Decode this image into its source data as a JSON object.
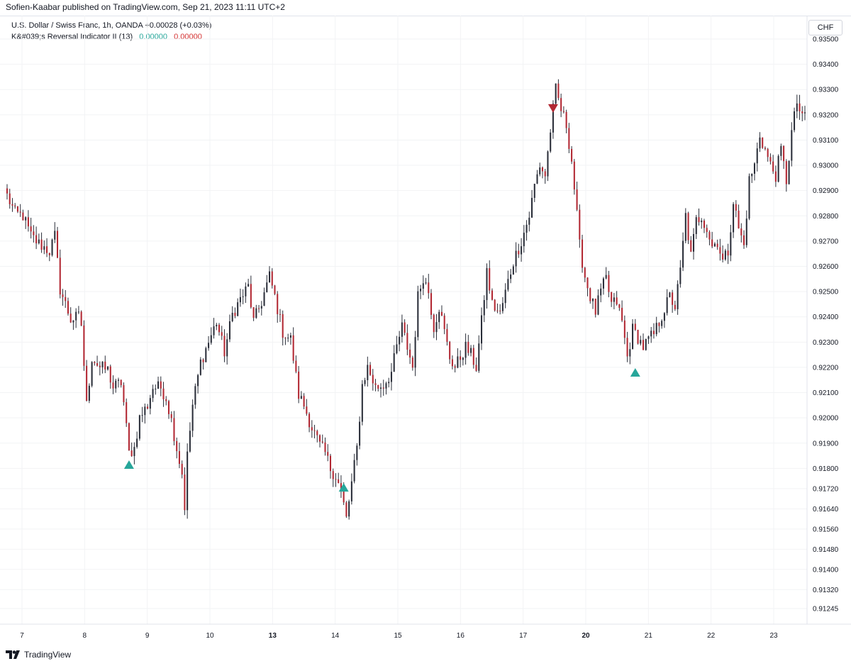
{
  "header": {
    "publisher": "Sofien-Kaabar published on TradingView.com, Sep 21, 2023 11:11 UTC+2",
    "symbol_line": "U.S. Dollar / Swiss Franc, 1h, OANDA  +0.00028 (+0.03%)",
    "indicator_name": "K&#039;s Reversal Indicator II (13)",
    "indicator_value_1": "0.00000",
    "indicator_value_2": "0.00000",
    "currency": "CHF"
  },
  "footer": {
    "brand": "TradingView",
    "logo_icon": "tradingview-logo-icon"
  },
  "colors": {
    "up": "#26a69a",
    "down": "#b22833",
    "candle_up": "#2a2e39",
    "candle_down": "#b22833",
    "grid": "#f2f3f5"
  },
  "chart_data": {
    "type": "candlestick",
    "title": "U.S. Dollar / Swiss Franc, 1h, OANDA",
    "ylim": [
      0.91245,
      0.935
    ],
    "y_ticks": [
      "0.93500",
      "0.93400",
      "0.93300",
      "0.93200",
      "0.93100",
      "0.93000",
      "0.92900",
      "0.92800",
      "0.92700",
      "0.92600",
      "0.92500",
      "0.92400",
      "0.92300",
      "0.92200",
      "0.92100",
      "0.92000",
      "0.91900",
      "0.91800",
      "0.91720",
      "0.91640",
      "0.91560",
      "0.91480",
      "0.91400",
      "0.91320",
      "0.91245"
    ],
    "x_ticks": [
      {
        "label": "7",
        "bold": false
      },
      {
        "label": "8",
        "bold": false
      },
      {
        "label": "9",
        "bold": false
      },
      {
        "label": "10",
        "bold": false
      },
      {
        "label": "13",
        "bold": true
      },
      {
        "label": "14",
        "bold": false
      },
      {
        "label": "15",
        "bold": false
      },
      {
        "label": "16",
        "bold": false
      },
      {
        "label": "17",
        "bold": false
      },
      {
        "label": "20",
        "bold": true
      },
      {
        "label": "21",
        "bold": false
      },
      {
        "label": "22",
        "bold": false
      },
      {
        "label": "23",
        "bold": false
      }
    ],
    "path": [
      [
        0,
        0.9288
      ],
      [
        3,
        0.9281
      ],
      [
        6,
        0.928
      ],
      [
        9,
        0.9272
      ],
      [
        12,
        0.9269
      ],
      [
        16,
        0.9266
      ],
      [
        18,
        0.9272
      ],
      [
        20,
        0.9251
      ],
      [
        24,
        0.9239
      ],
      [
        27,
        0.924
      ],
      [
        28,
        0.9237
      ],
      [
        30,
        0.9205
      ],
      [
        32,
        0.9224
      ],
      [
        35,
        0.922
      ],
      [
        38,
        0.9219
      ],
      [
        40,
        0.9212
      ],
      [
        43,
        0.9214
      ],
      [
        44,
        0.9206
      ],
      [
        46,
        0.9186
      ],
      [
        48,
        0.9188
      ],
      [
        50,
        0.92
      ],
      [
        53,
        0.9205
      ],
      [
        55,
        0.9212
      ],
      [
        58,
        0.9212
      ],
      [
        60,
        0.9208
      ],
      [
        62,
        0.9199
      ],
      [
        64,
        0.9188
      ],
      [
        66,
        0.9178
      ],
      [
        67,
        0.9165
      ],
      [
        68,
        0.9185
      ],
      [
        70,
        0.9205
      ],
      [
        73,
        0.9222
      ],
      [
        76,
        0.923
      ],
      [
        79,
        0.9238
      ],
      [
        82,
        0.9226
      ],
      [
        85,
        0.9241
      ],
      [
        88,
        0.9247
      ],
      [
        91,
        0.9252
      ],
      [
        93,
        0.9238
      ],
      [
        96,
        0.9246
      ],
      [
        99,
        0.9256
      ],
      [
        101,
        0.9248
      ],
      [
        104,
        0.9234
      ],
      [
        107,
        0.9231
      ],
      [
        110,
        0.9209
      ],
      [
        112,
        0.9205
      ],
      [
        115,
        0.9196
      ],
      [
        118,
        0.9189
      ],
      [
        120,
        0.9186
      ],
      [
        122,
        0.918
      ],
      [
        124,
        0.9177
      ],
      [
        126,
        0.9171
      ],
      [
        128,
        0.916
      ],
      [
        130,
        0.9174
      ],
      [
        132,
        0.9188
      ],
      [
        134,
        0.9213
      ],
      [
        136,
        0.922
      ],
      [
        139,
        0.9212
      ],
      [
        142,
        0.9213
      ],
      [
        145,
        0.9218
      ],
      [
        147,
        0.9228
      ],
      [
        149,
        0.9236
      ],
      [
        151,
        0.9228
      ],
      [
        153,
        0.922
      ],
      [
        155,
        0.9248
      ],
      [
        157,
        0.9256
      ],
      [
        159,
        0.925
      ],
      [
        161,
        0.9236
      ],
      [
        163,
        0.9244
      ],
      [
        165,
        0.9234
      ],
      [
        167,
        0.9224
      ],
      [
        169,
        0.922
      ],
      [
        171,
        0.9224
      ],
      [
        173,
        0.9228
      ],
      [
        175,
        0.9225
      ],
      [
        177,
        0.922
      ],
      [
        179,
        0.9238
      ],
      [
        181,
        0.9258
      ],
      [
        183,
        0.9245
      ],
      [
        186,
        0.9241
      ],
      [
        189,
        0.9254
      ],
      [
        191,
        0.9262
      ],
      [
        194,
        0.927
      ],
      [
        197,
        0.928
      ],
      [
        199,
        0.9292
      ],
      [
        201,
        0.93
      ],
      [
        203,
        0.9296
      ],
      [
        205,
        0.9314
      ],
      [
        207,
        0.933
      ],
      [
        209,
        0.9322
      ],
      [
        211,
        0.9316
      ],
      [
        213,
        0.9302
      ],
      [
        215,
        0.928
      ],
      [
        216,
        0.9268
      ],
      [
        218,
        0.9256
      ],
      [
        220,
        0.9248
      ],
      [
        222,
        0.9242
      ],
      [
        224,
        0.925
      ],
      [
        226,
        0.9255
      ],
      [
        228,
        0.9245
      ],
      [
        230,
        0.9246
      ],
      [
        232,
        0.9238
      ],
      [
        234,
        0.9224
      ],
      [
        236,
        0.9235
      ],
      [
        238,
        0.9232
      ],
      [
        240,
        0.9228
      ],
      [
        242,
        0.9231
      ],
      [
        244,
        0.9233
      ],
      [
        246,
        0.9238
      ],
      [
        248,
        0.9243
      ],
      [
        250,
        0.9248
      ],
      [
        252,
        0.9244
      ],
      [
        254,
        0.9258
      ],
      [
        256,
        0.928
      ],
      [
        258,
        0.9264
      ],
      [
        260,
        0.9278
      ],
      [
        262,
        0.928
      ],
      [
        264,
        0.9275
      ],
      [
        266,
        0.9268
      ],
      [
        268,
        0.927
      ],
      [
        270,
        0.9262
      ],
      [
        272,
        0.9266
      ],
      [
        274,
        0.9286
      ],
      [
        276,
        0.9275
      ],
      [
        278,
        0.9268
      ],
      [
        280,
        0.9294
      ],
      [
        282,
        0.93
      ],
      [
        284,
        0.9312
      ],
      [
        286,
        0.9306
      ],
      [
        288,
        0.93
      ],
      [
        290,
        0.9296
      ],
      [
        292,
        0.9306
      ],
      [
        294,
        0.9294
      ],
      [
        296,
        0.9313
      ],
      [
        298,
        0.9325
      ],
      [
        300,
        0.9318
      ],
      [
        301,
        0.932
      ]
    ],
    "signals": [
      {
        "type": "bullish",
        "bar": 46,
        "price": 0.91815
      },
      {
        "type": "bullish",
        "bar": 127,
        "price": 0.91725
      },
      {
        "type": "bearish",
        "bar": 206,
        "price": 0.93225
      },
      {
        "type": "bullish",
        "bar": 237,
        "price": 0.9218
      }
    ]
  }
}
